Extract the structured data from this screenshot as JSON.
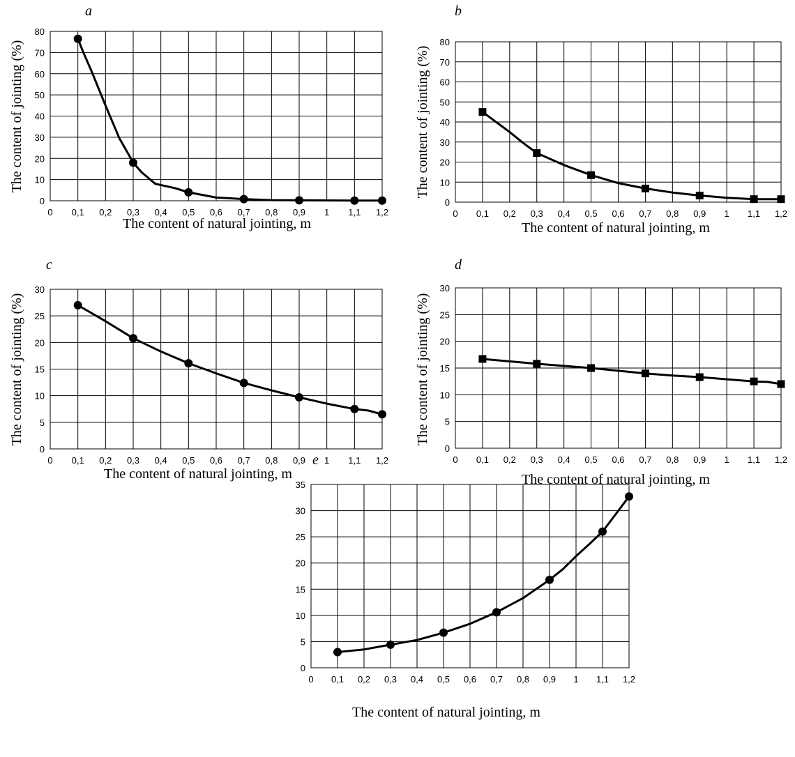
{
  "chart_data": [
    {
      "panel": "a",
      "type": "line",
      "marker": "circle",
      "xlabel": "The content of natural jointing, m",
      "ylabel": "The content of jointing (%)",
      "xlim": [
        0,
        1.2
      ],
      "ylim": [
        0,
        80
      ],
      "x_ticks": [
        "0",
        "0,1",
        "0,2",
        "0,3",
        "0,4",
        "0,5",
        "0,6",
        "0,7",
        "0,8",
        "0,9",
        "1",
        "1,1",
        "1,2"
      ],
      "y_ticks": [
        "0",
        "10",
        "20",
        "30",
        "40",
        "50",
        "60",
        "70",
        "80"
      ],
      "grid": true,
      "legend": "none",
      "x": [
        0.1,
        0.3,
        0.5,
        0.7,
        0.9,
        1.1,
        1.2
      ],
      "values": [
        76.5,
        18,
        4,
        0.8,
        0.2,
        0.1,
        0.1
      ],
      "curve": [
        [
          0.1,
          76.5
        ],
        [
          0.12,
          70
        ],
        [
          0.15,
          61
        ],
        [
          0.2,
          45
        ],
        [
          0.25,
          29.5
        ],
        [
          0.3,
          18
        ],
        [
          0.33,
          13.5
        ],
        [
          0.38,
          8
        ],
        [
          0.45,
          6
        ],
        [
          0.5,
          4
        ],
        [
          0.6,
          1.5
        ],
        [
          0.7,
          0.8
        ],
        [
          0.8,
          0.3
        ],
        [
          0.9,
          0.2
        ],
        [
          1.1,
          0.1
        ],
        [
          1.2,
          0.1
        ]
      ]
    },
    {
      "panel": "b",
      "type": "line",
      "marker": "square",
      "xlabel": "The content of natural jointing, m",
      "ylabel": "The content of jointing (%)",
      "xlim": [
        0,
        1.2
      ],
      "ylim": [
        0,
        80
      ],
      "x_ticks": [
        "0",
        "0,1",
        "0,2",
        "0,3",
        "0,4",
        "0,5",
        "0,6",
        "0,7",
        "0,8",
        "0,9",
        "1",
        "1,1",
        "1,2"
      ],
      "y_ticks": [
        "0",
        "10",
        "20",
        "30",
        "40",
        "50",
        "60",
        "70",
        "80"
      ],
      "grid": true,
      "legend": "none",
      "x": [
        0.1,
        0.3,
        0.5,
        0.7,
        0.9,
        1.1,
        1.2
      ],
      "values": [
        45,
        24.5,
        13.5,
        6.8,
        3.3,
        1.5,
        1.5
      ],
      "curve": [
        [
          0.1,
          45
        ],
        [
          0.2,
          35
        ],
        [
          0.25,
          29.5
        ],
        [
          0.3,
          24.5
        ],
        [
          0.4,
          18.5
        ],
        [
          0.5,
          13.5
        ],
        [
          0.6,
          9.5
        ],
        [
          0.7,
          6.8
        ],
        [
          0.8,
          4.8
        ],
        [
          0.9,
          3.3
        ],
        [
          1.0,
          2.2
        ],
        [
          1.1,
          1.5
        ],
        [
          1.2,
          1.5
        ]
      ]
    },
    {
      "panel": "c",
      "type": "line",
      "marker": "circle",
      "xlabel": "The content of natural jointing, m",
      "ylabel": "The content of jointing (%)",
      "xlim": [
        0,
        1.2
      ],
      "ylim": [
        0,
        30
      ],
      "x_ticks": [
        "0",
        "0,1",
        "0,2",
        "0,3",
        "0,4",
        "0,5",
        "0,6",
        "0,7",
        "0,8",
        "0,9",
        "1",
        "1,1",
        "1,2"
      ],
      "y_ticks": [
        "0",
        "5",
        "10",
        "15",
        "20",
        "25",
        "30"
      ],
      "grid": true,
      "legend": "none",
      "x": [
        0.1,
        0.3,
        0.5,
        0.7,
        0.9,
        1.1,
        1.2
      ],
      "values": [
        27,
        20.8,
        16.1,
        12.4,
        9.7,
        7.5,
        6.5
      ],
      "curve": [
        [
          0.1,
          27
        ],
        [
          0.2,
          24
        ],
        [
          0.3,
          20.8
        ],
        [
          0.4,
          18.3
        ],
        [
          0.5,
          16.1
        ],
        [
          0.6,
          14.2
        ],
        [
          0.7,
          12.4
        ],
        [
          0.8,
          11
        ],
        [
          0.9,
          9.7
        ],
        [
          1.0,
          8.5
        ],
        [
          1.1,
          7.5
        ],
        [
          1.15,
          7.2
        ],
        [
          1.2,
          6.5
        ]
      ]
    },
    {
      "panel": "d",
      "type": "line",
      "marker": "square",
      "xlabel": "The content of natural jointing, m",
      "ylabel": "The content of jointing (%)",
      "xlim": [
        0,
        1.2
      ],
      "ylim": [
        0,
        30
      ],
      "x_ticks": [
        "0",
        "0,1",
        "0,2",
        "0,3",
        "0,4",
        "0,5",
        "0,6",
        "0,7",
        "0,8",
        "0,9",
        "1",
        "1,1",
        "1,2"
      ],
      "y_ticks": [
        "0",
        "5",
        "10",
        "15",
        "20",
        "25",
        "30"
      ],
      "grid": true,
      "legend": "none",
      "x": [
        0.1,
        0.3,
        0.5,
        0.7,
        0.9,
        1.1,
        1.2
      ],
      "values": [
        16.7,
        15.8,
        15,
        14,
        13.3,
        12.5,
        12
      ],
      "curve": [
        [
          0.1,
          16.7
        ],
        [
          0.3,
          15.8
        ],
        [
          0.5,
          15
        ],
        [
          0.7,
          14
        ],
        [
          0.8,
          13.6
        ],
        [
          0.9,
          13.3
        ],
        [
          1.0,
          12.9
        ],
        [
          1.1,
          12.5
        ],
        [
          1.15,
          12.4
        ],
        [
          1.2,
          12
        ]
      ]
    },
    {
      "panel": "e",
      "type": "line",
      "marker": "circle",
      "xlabel": "The content of natural jointing, m",
      "ylabel": "",
      "xlim": [
        0,
        1.2
      ],
      "ylim": [
        0,
        35
      ],
      "x_ticks": [
        "0",
        "0,1",
        "0,2",
        "0,3",
        "0,4",
        "0,5",
        "0,6",
        "0,7",
        "0,8",
        "0,9",
        "1",
        "1,1",
        "1,2"
      ],
      "y_ticks": [
        "0",
        "5",
        "10",
        "15",
        "20",
        "25",
        "30",
        "35"
      ],
      "grid": true,
      "legend": "none",
      "x": [
        0.1,
        0.3,
        0.5,
        0.7,
        0.9,
        1.1,
        1.2
      ],
      "values": [
        3,
        4.4,
        6.7,
        10.6,
        16.8,
        26,
        32.7
      ],
      "curve": [
        [
          0.1,
          3
        ],
        [
          0.2,
          3.5
        ],
        [
          0.3,
          4.4
        ],
        [
          0.4,
          5.3
        ],
        [
          0.5,
          6.7
        ],
        [
          0.6,
          8.4
        ],
        [
          0.7,
          10.6
        ],
        [
          0.8,
          13.3
        ],
        [
          0.9,
          16.8
        ],
        [
          0.95,
          18.8
        ],
        [
          1.0,
          21.3
        ],
        [
          1.05,
          23.6
        ],
        [
          1.1,
          26
        ],
        [
          1.13,
          28
        ],
        [
          1.2,
          32.7
        ]
      ]
    }
  ]
}
